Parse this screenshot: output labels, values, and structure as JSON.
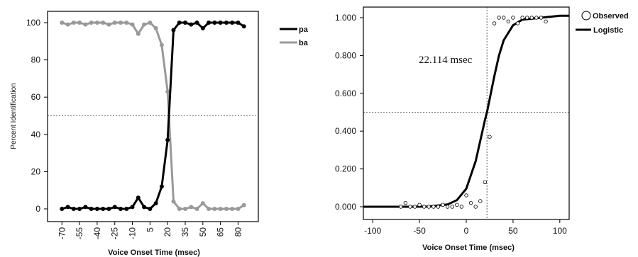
{
  "chart_data": [
    {
      "type": "line",
      "xlabel": "Voice Onset Time (msec)",
      "ylabel": "Percent Identification",
      "ylim": [
        0,
        100
      ],
      "yticks": [
        0,
        20,
        40,
        60,
        80,
        100
      ],
      "xticks": [
        -70,
        -55,
        -40,
        -25,
        -10,
        5,
        20,
        35,
        50,
        65,
        80
      ],
      "xtick_labels": [
        "-70",
        "-55",
        "-40",
        "-25",
        "-10",
        "5",
        "20",
        "35",
        "50",
        "65",
        "80"
      ],
      "x": [
        -70,
        -65,
        -60,
        -55,
        -50,
        -45,
        -40,
        -35,
        -30,
        -25,
        -20,
        -15,
        -10,
        -5,
        0,
        5,
        10,
        15,
        20,
        25,
        30,
        35,
        40,
        45,
        50,
        55,
        60,
        65,
        70,
        75,
        80,
        85
      ],
      "reference_y": 50,
      "grid": false,
      "legend_position": "right",
      "series": [
        {
          "name": "pa",
          "color": "#000000",
          "values": [
            0,
            1,
            0,
            0,
            1,
            0,
            0,
            0,
            0,
            1,
            0,
            0,
            1,
            6,
            1,
            0,
            3,
            12,
            37,
            96,
            100,
            100,
            99,
            100,
            97,
            100,
            100,
            100,
            100,
            100,
            100,
            98
          ]
        },
        {
          "name": "ba",
          "color": "#999999",
          "values": [
            100,
            99,
            100,
            100,
            99,
            100,
            100,
            100,
            99,
            100,
            100,
            100,
            99,
            94,
            99,
            100,
            97,
            88,
            63,
            4,
            0,
            0,
            1,
            0,
            3,
            0,
            0,
            0,
            0,
            0,
            0,
            2
          ]
        }
      ]
    },
    {
      "type": "scatter",
      "xlabel": "Voice Onset Time (msec)",
      "ylabel": "",
      "xlim": [
        -110,
        110
      ],
      "ylim": [
        0,
        1.05
      ],
      "xticks": [
        -100,
        -50,
        0,
        50,
        100
      ],
      "xtick_labels": [
        "-100",
        "-50",
        "0",
        "50",
        "100"
      ],
      "yticks": [
        0,
        0.2,
        0.4,
        0.6,
        0.8,
        1.0
      ],
      "ytick_labels": [
        "0.000",
        "0.200",
        "0.400",
        "0.600",
        "0.800",
        "1.000"
      ],
      "reference_x": 22.114,
      "reference_y": 0.5,
      "annotation": "22.114 msec",
      "grid": false,
      "legend_position": "top-right",
      "series": [
        {
          "name": "Observed",
          "marker": "open-circle",
          "x": [
            -70,
            -65,
            -60,
            -55,
            -50,
            -45,
            -40,
            -35,
            -30,
            -25,
            -20,
            -15,
            -10,
            -5,
            0,
            5,
            10,
            15,
            20,
            25,
            30,
            35,
            40,
            45,
            50,
            55,
            60,
            65,
            70,
            75,
            80,
            85
          ],
          "y": [
            0.0,
            0.02,
            0.0,
            0.0,
            0.01,
            0.0,
            0.0,
            0.0,
            0.0,
            0.01,
            0.0,
            0.0,
            0.01,
            0.0,
            0.06,
            0.02,
            0.0,
            0.03,
            0.13,
            0.37,
            0.97,
            1.0,
            1.0,
            0.98,
            1.0,
            0.97,
            1.0,
            1.0,
            1.0,
            1.0,
            1.0,
            0.98
          ]
        },
        {
          "name": "Logistic",
          "type": "line",
          "color": "#000000",
          "x": [
            -110,
            -100,
            -80,
            -60,
            -40,
            -20,
            -10,
            0,
            10,
            15,
            20,
            22.114,
            25,
            30,
            35,
            40,
            50,
            60,
            80,
            100,
            110
          ],
          "y": [
            0.0,
            0.0,
            0.0,
            0.0,
            0.001,
            0.012,
            0.035,
            0.095,
            0.24,
            0.35,
            0.46,
            0.5,
            0.57,
            0.69,
            0.8,
            0.88,
            0.96,
            0.99,
            1.0,
            1.01,
            1.01
          ]
        }
      ]
    }
  ]
}
